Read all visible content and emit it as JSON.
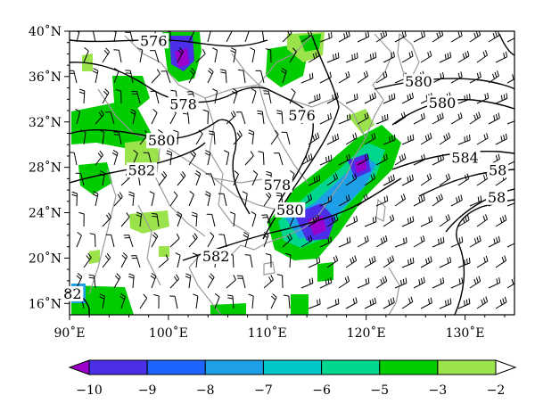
{
  "map": {
    "lon_range": [
      90,
      135
    ],
    "lat_range": [
      15,
      40
    ],
    "x_ticks": [
      {
        "value": 90,
        "label": "90˚E"
      },
      {
        "value": 100,
        "label": "100˚E"
      },
      {
        "value": 110,
        "label": "110˚E"
      },
      {
        "value": 120,
        "label": "120˚E"
      },
      {
        "value": 130,
        "label": "130˚E"
      }
    ],
    "y_ticks": [
      {
        "value": 40,
        "label": "40˚N"
      },
      {
        "value": 36,
        "label": "36˚N"
      },
      {
        "value": 32,
        "label": "32˚N"
      },
      {
        "value": 28,
        "label": "28˚N"
      },
      {
        "value": 24,
        "label": "24˚N"
      },
      {
        "value": 20,
        "label": "20˚N"
      },
      {
        "value": 16,
        "label": "16˚N"
      }
    ],
    "contour_labels": [
      {
        "text": "576",
        "lon": 98.5,
        "lat": 38.8
      },
      {
        "text": "578",
        "lon": 101.5,
        "lat": 33.2
      },
      {
        "text": "580",
        "lon": 99.3,
        "lat": 30.0
      },
      {
        "text": "582",
        "lon": 97.3,
        "lat": 27.4
      },
      {
        "text": "576",
        "lon": 113.5,
        "lat": 32.2
      },
      {
        "text": "580",
        "lon": 125.3,
        "lat": 35.2
      },
      {
        "text": "580",
        "lon": 127.7,
        "lat": 33.3
      },
      {
        "text": "584",
        "lon": 130.0,
        "lat": 28.5
      },
      {
        "text": "578",
        "lon": 111.0,
        "lat": 26.1
      },
      {
        "text": "580",
        "lon": 112.3,
        "lat": 23.9
      },
      {
        "text": "582",
        "lon": 104.8,
        "lat": 19.8
      },
      {
        "text": "58",
        "lon": 133.3,
        "lat": 27.4
      },
      {
        "text": "58",
        "lon": 133.2,
        "lat": 25.0
      },
      {
        "text": "82",
        "lon": 90.3,
        "lat": 16.5
      }
    ],
    "colors": {
      "purple": "#9b00cc",
      "dark_blue": "#4040e0",
      "blue": "#1e90ff",
      "cyan": "#00bfcf",
      "teal": "#00d090",
      "green": "#00cc00",
      "light_green": "#9be34a",
      "boundary": "#9a9a9a"
    }
  },
  "colorbar": {
    "levels": [
      "−10",
      "−9",
      "−8",
      "−7",
      "−6",
      "−5",
      "−3",
      "−2"
    ],
    "colors": [
      "#9b00cc",
      "#4a2ee8",
      "#1e64ff",
      "#1ea0e8",
      "#00c8c8",
      "#00d78c",
      "#00cc00",
      "#9be34a",
      "#ffffff"
    ]
  }
}
